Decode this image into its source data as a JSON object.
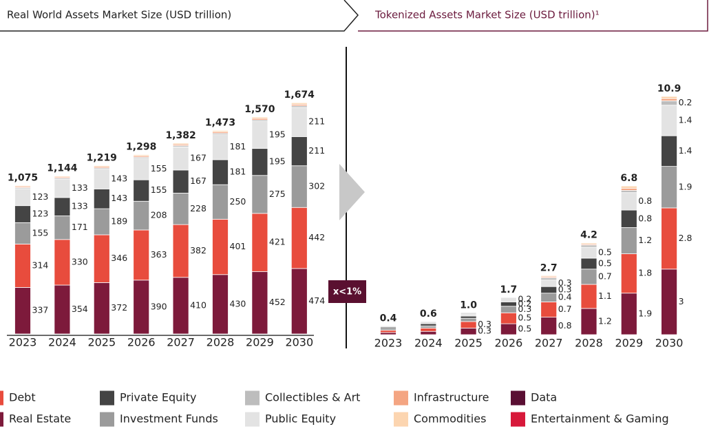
{
  "header": {
    "left_title": "Real World Assets Market Size (USD trillion)",
    "right_title": "Tokenized Assets Market Size (USD trillion)¹",
    "ratio_badge": "x<1%"
  },
  "chart_data": [
    {
      "type": "stacked_bar",
      "categories": [
        "2023",
        "2024",
        "2025",
        "2026",
        "2027",
        "2028",
        "2029",
        "2030"
      ],
      "ylim": [
        0,
        1750
      ],
      "totals": [
        1075,
        1144,
        1219,
        1298,
        1382,
        1473,
        1570,
        1674
      ],
      "totals_labels": [
        "1,075",
        "1,144",
        "1,219",
        "1,298",
        "1,382",
        "1,473",
        "1,570",
        "1,674"
      ],
      "series": [
        {
          "name": "Real Estate",
          "color": "#7d1a3b",
          "values": [
            337,
            354,
            372,
            390,
            410,
            430,
            452,
            474
          ]
        },
        {
          "name": "Debt",
          "color": "#e84c3d",
          "values": [
            314,
            330,
            346,
            363,
            382,
            401,
            421,
            442
          ]
        },
        {
          "name": "Investment Funds",
          "color": "#9b9b9b",
          "values": [
            155,
            171,
            189,
            208,
            228,
            250,
            275,
            302
          ]
        },
        {
          "name": "Private Equity",
          "color": "#444444",
          "values": [
            123,
            133,
            143,
            155,
            167,
            181,
            195,
            211
          ]
        },
        {
          "name": "Public Equity",
          "color": "#e3e3e3",
          "values": [
            123,
            133,
            143,
            155,
            167,
            181,
            195,
            211
          ]
        },
        {
          "name": "Collectibles & Art",
          "color": "#bdbdbd",
          "values": [
            8,
            8,
            9,
            9,
            10,
            10,
            11,
            12
          ]
        },
        {
          "name": "Infrastructure",
          "color": "#f4a582",
          "values": [
            8,
            8,
            9,
            9,
            9,
            10,
            11,
            11
          ]
        },
        {
          "name": "Commodities",
          "color": "#fcd5b0",
          "values": [
            7,
            7,
            8,
            9,
            9,
            10,
            10,
            11
          ]
        }
      ]
    },
    {
      "type": "stacked_bar",
      "categories": [
        "2023",
        "2024",
        "2025",
        "2026",
        "2027",
        "2028",
        "2029",
        "2030"
      ],
      "ylim": [
        0,
        11.5
      ],
      "totals": [
        0.4,
        0.6,
        1.0,
        1.7,
        2.7,
        4.2,
        6.8,
        10.9
      ],
      "totals_labels": [
        "0.4",
        "0.6",
        "1.0",
        "1.7",
        "2.7",
        "4.2",
        "6.8",
        "10.9"
      ],
      "series": [
        {
          "name": "Real Estate",
          "color": "#7d1a3b",
          "values": [
            0.1,
            0.15,
            0.3,
            0.5,
            0.8,
            1.2,
            1.9,
            3.0
          ]
        },
        {
          "name": "Debt",
          "color": "#e84c3d",
          "values": [
            0.1,
            0.15,
            0.3,
            0.5,
            0.7,
            1.1,
            1.8,
            2.8
          ]
        },
        {
          "name": "Investment Funds",
          "color": "#9b9b9b",
          "values": [
            0.08,
            0.1,
            0.15,
            0.3,
            0.4,
            0.7,
            1.2,
            1.9
          ]
        },
        {
          "name": "Private Equity",
          "color": "#444444",
          "values": [
            0.06,
            0.1,
            0.1,
            0.2,
            0.3,
            0.5,
            0.8,
            1.4
          ]
        },
        {
          "name": "Public Equity",
          "color": "#e3e3e3",
          "values": [
            0.06,
            0.1,
            0.1,
            0.2,
            0.3,
            0.5,
            0.8,
            1.4
          ]
        },
        {
          "name": "Collectibles & Art",
          "color": "#bdbdbd",
          "values": [
            0,
            0,
            0.05,
            0,
            0.1,
            0.1,
            0.1,
            0.2
          ]
        },
        {
          "name": "Infrastructure",
          "color": "#f4a582",
          "values": [
            0,
            0,
            0,
            0,
            0.05,
            0.05,
            0.1,
            0.1
          ]
        },
        {
          "name": "Commodities",
          "color": "#fcd5b0",
          "values": [
            0,
            0,
            0,
            0,
            0.05,
            0.05,
            0.1,
            0.1
          ]
        }
      ]
    }
  ],
  "legend_extra": [
    {
      "name": "Data",
      "color": "#5a0f33"
    },
    {
      "name": "Entertainment & Gaming",
      "color": "#d7193a"
    }
  ]
}
